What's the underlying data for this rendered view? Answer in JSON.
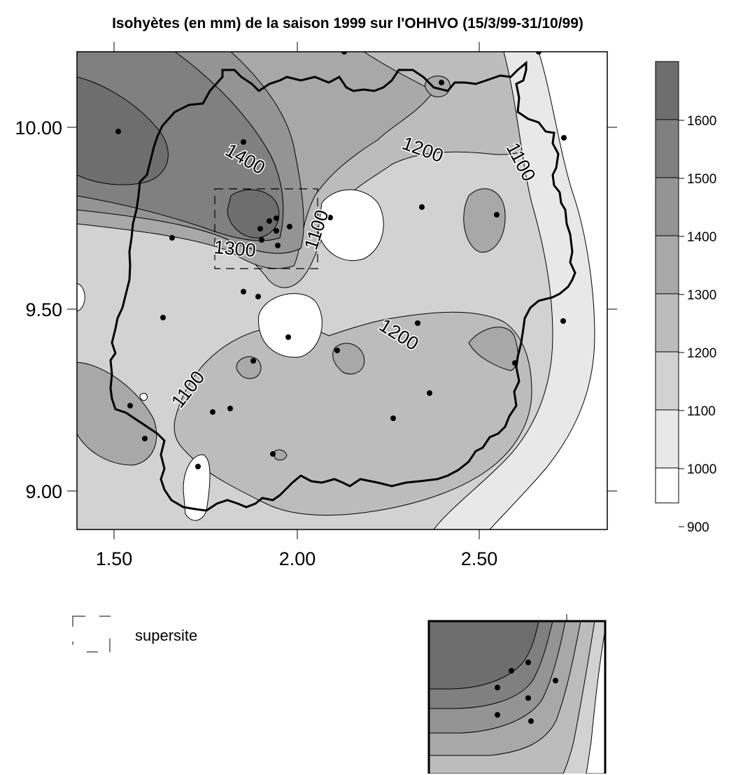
{
  "title": "Isohyètes (en mm) de la saison 1999 sur l'OHHVO (15/3/99-31/10/99)",
  "x_ticks": [
    "1.50",
    "2.00",
    "2.50"
  ],
  "y_ticks": [
    "10.00",
    "9.50",
    "9.00"
  ],
  "colorbar": {
    "ticks": [
      "1600",
      "1500",
      "1400",
      "1300",
      "1200",
      "1100",
      "1000",
      "900"
    ],
    "colors": [
      "#6e6e6e",
      "#808080",
      "#949494",
      "#a8a8a8",
      "#bcbcbc",
      "#d2d2d2",
      "#e8e8e8"
    ]
  },
  "contour_labels": [
    "1400",
    "1300",
    "1100",
    "1200",
    "1100",
    "1200",
    "1100"
  ],
  "legend": {
    "label": "supersite"
  },
  "colors": {
    "frame": "#000000",
    "station": "#000000",
    "background": "#ffffff"
  }
}
